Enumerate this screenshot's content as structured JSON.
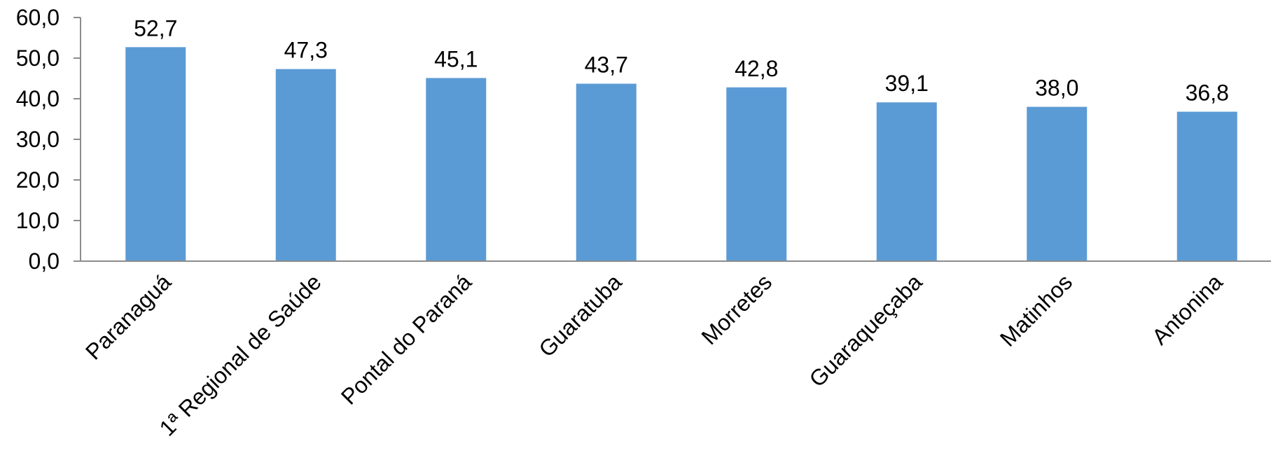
{
  "chart_data": {
    "type": "bar",
    "categories": [
      "Paranaguá",
      "1ª Regional de Saúde",
      "Pontal do Paraná",
      "Guaratuba",
      "Morretes",
      "Guaraqueçaba",
      "Matinhos",
      "Antonina"
    ],
    "values": [
      52.7,
      47.3,
      45.1,
      43.7,
      42.8,
      39.1,
      38.0,
      36.8
    ],
    "value_labels": [
      "52,7",
      "47,3",
      "45,1",
      "43,7",
      "42,8",
      "39,1",
      "38,0",
      "36,8"
    ],
    "ylim": [
      0,
      60
    ],
    "yticks": [
      0,
      10,
      20,
      30,
      40,
      50,
      60
    ],
    "ytick_labels": [
      "0,0",
      "10,0",
      "20,0",
      "30,0",
      "40,0",
      "50,0",
      "60,0"
    ],
    "grid": false,
    "legend": "none",
    "bar_color": "#5b9bd5",
    "axis_color": "#8c8c8c"
  }
}
